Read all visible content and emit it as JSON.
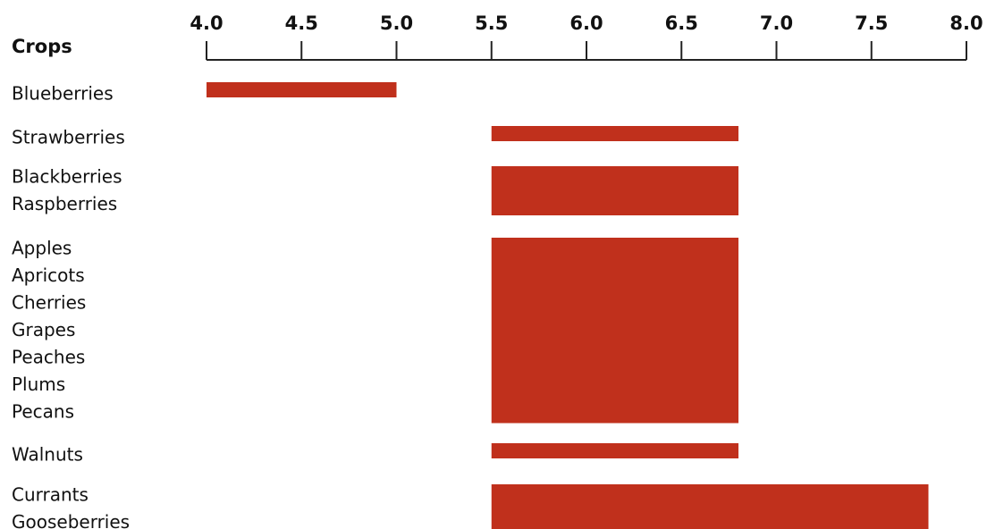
{
  "chart_data": {
    "type": "bar",
    "orientation": "horizontal-range",
    "title": "",
    "category_header": "Crops",
    "xlim": [
      4.0,
      8.0
    ],
    "x_ticks": [
      "4.0",
      "4.5",
      "5.0",
      "5.5",
      "6.0",
      "6.5",
      "7.0",
      "7.5",
      "8.0"
    ],
    "axis_position": "top",
    "grid": false,
    "bar_color": "#c0301c",
    "groups": [
      {
        "crops": [
          "Blueberries"
        ],
        "range": [
          4.0,
          5.0
        ]
      },
      {
        "crops": [
          "Strawberries"
        ],
        "range": [
          5.5,
          6.8
        ]
      },
      {
        "crops": [
          "Blackberries",
          "Raspberries"
        ],
        "range": [
          5.5,
          6.8
        ]
      },
      {
        "crops": [
          "Apples",
          "Apricots",
          "Cherries",
          "Grapes",
          "Peaches",
          "Plums",
          "Pecans"
        ],
        "range": [
          5.5,
          6.8
        ]
      },
      {
        "crops": [
          "Walnuts"
        ],
        "range": [
          5.5,
          6.8
        ]
      },
      {
        "crops": [
          "Currants",
          "Gooseberries"
        ],
        "range": [
          5.5,
          7.8
        ]
      }
    ]
  }
}
